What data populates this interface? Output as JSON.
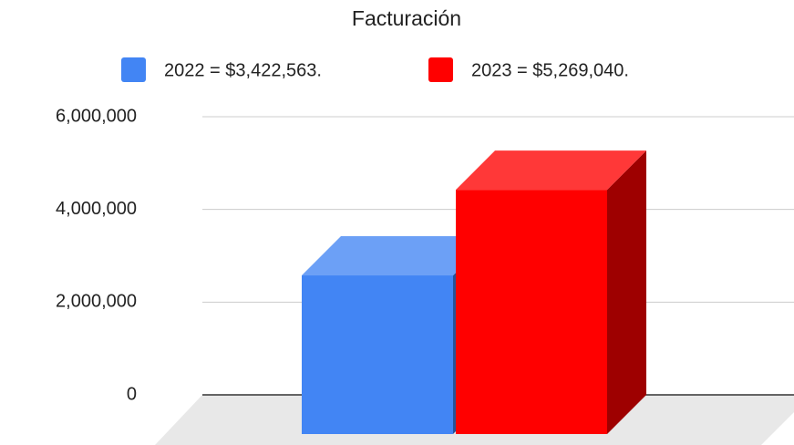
{
  "chart_data": {
    "type": "bar3d",
    "title": "Facturación",
    "series": [
      {
        "name": "2022 = $3,422,563.",
        "color": "#4285f4",
        "values": [
          3422563
        ]
      },
      {
        "name": "2023 = $5,269,040.",
        "color": "#ff0000",
        "values": [
          5269040
        ]
      }
    ],
    "ylim": [
      0,
      6000000
    ],
    "yticks": [
      0,
      {
        "value": 2000000,
        "label": "2,000,000"
      },
      {
        "value": 4000000,
        "label": "4,000,000"
      },
      {
        "value": 6000000,
        "label": "6,000,000"
      }
    ],
    "grid": true
  }
}
